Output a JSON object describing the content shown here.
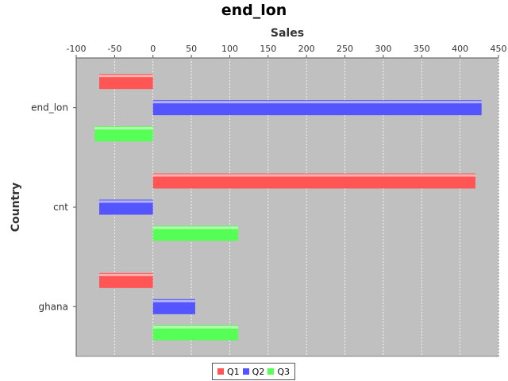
{
  "chart_data": {
    "type": "bar",
    "orientation": "horizontal",
    "title": "end_lon",
    "xlabel": "Sales",
    "ylabel": "Country",
    "categories": [
      "end_lon",
      "cnt",
      "ghana"
    ],
    "series": [
      {
        "name": "Q1",
        "color": "#ff5555",
        "values": [
          -70,
          420,
          -70
        ]
      },
      {
        "name": "Q2",
        "color": "#5555ff",
        "values": [
          428,
          -70,
          55
        ]
      },
      {
        "name": "Q3",
        "color": "#55ff55",
        "values": [
          -76,
          111,
          111
        ]
      }
    ],
    "xlim": [
      -100,
      450
    ],
    "xticks": [
      -100,
      -50,
      0,
      50,
      100,
      150,
      200,
      250,
      300,
      350,
      400,
      450
    ],
    "xaxis_position": "top",
    "grid": true,
    "legend": "bottom"
  }
}
